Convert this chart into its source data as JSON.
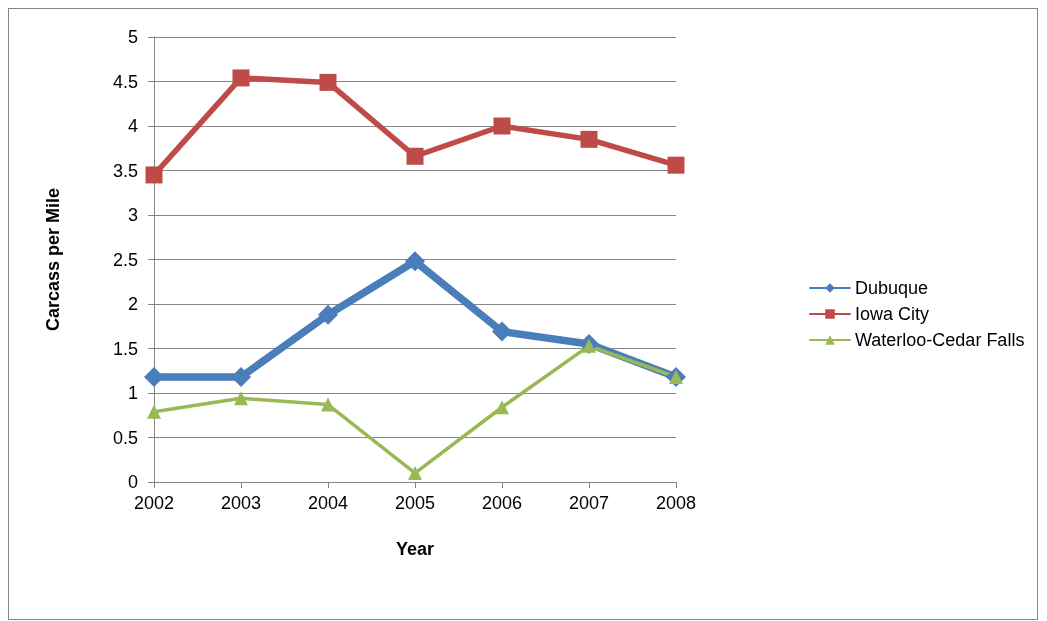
{
  "chart_data": {
    "type": "line",
    "xlabel": "Year",
    "ylabel": "Carcass per Mile",
    "categories": [
      "2002",
      "2003",
      "2004",
      "2005",
      "2006",
      "2007",
      "2008"
    ],
    "series": [
      {
        "name": "Dubuque",
        "color": "#4a7ebb",
        "marker": "diamond",
        "values": [
          1.18,
          1.18,
          1.88,
          2.48,
          1.69,
          1.55,
          1.18
        ]
      },
      {
        "name": "Iowa City",
        "color": "#be4b48",
        "marker": "square",
        "values": [
          3.45,
          4.54,
          4.49,
          3.66,
          4.0,
          3.85,
          3.56
        ]
      },
      {
        "name": "Waterloo-Cedar Falls",
        "color": "#98b954",
        "marker": "triangle",
        "values": [
          0.79,
          0.94,
          0.87,
          0.1,
          0.84,
          1.53,
          1.18
        ]
      }
    ],
    "ylim": [
      0,
      5
    ],
    "yticks": [
      0,
      0.5,
      1,
      1.5,
      2,
      2.5,
      3,
      3.5,
      4,
      4.5,
      5
    ],
    "grid": "y",
    "legend": "right"
  }
}
